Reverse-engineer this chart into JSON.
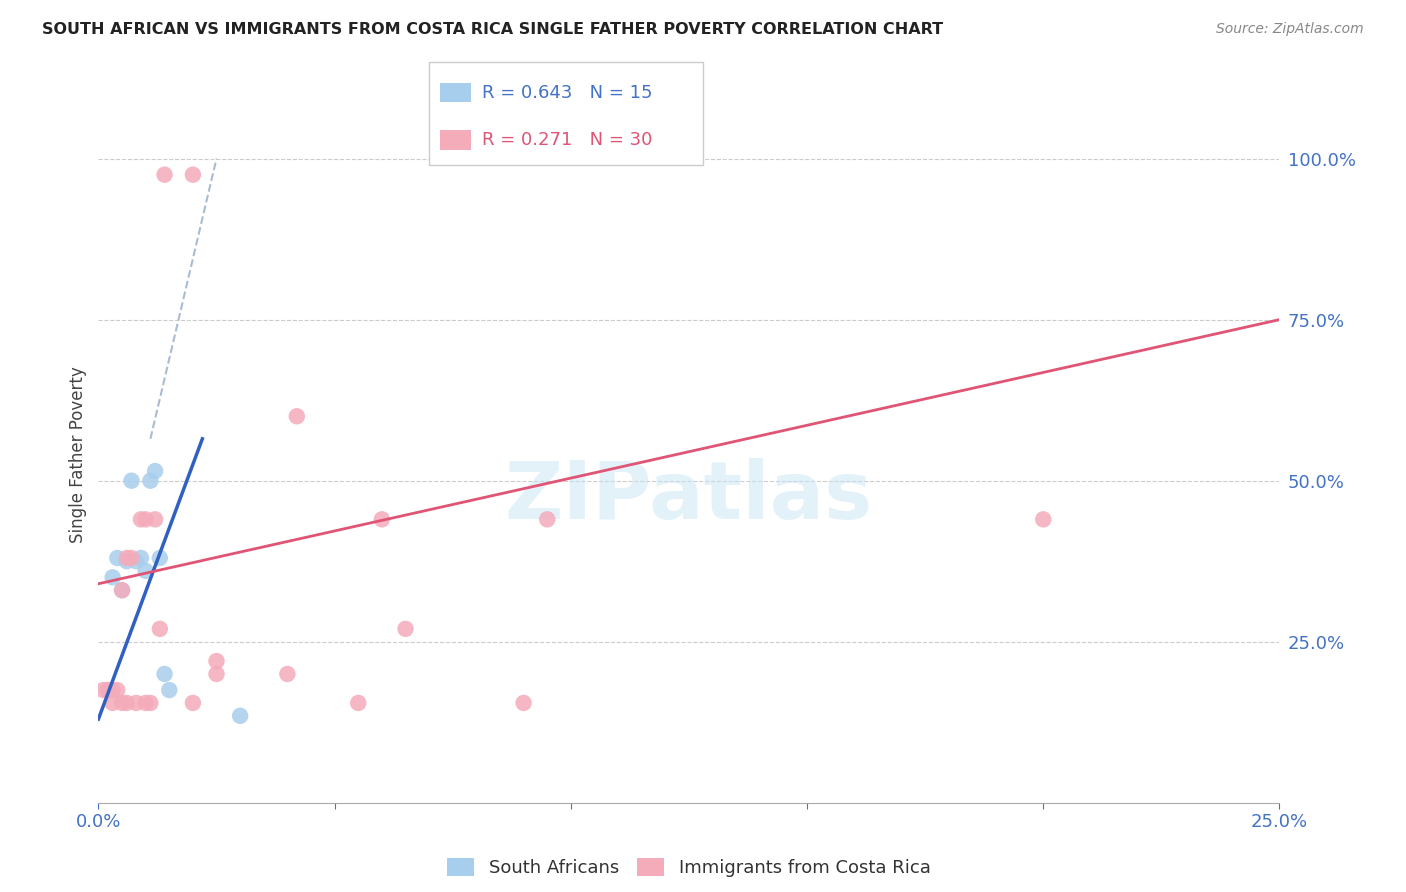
{
  "title": "SOUTH AFRICAN VS IMMIGRANTS FROM COSTA RICA SINGLE FATHER POVERTY CORRELATION CHART",
  "source": "Source: ZipAtlas.com",
  "ylabel": "Single Father Poverty",
  "right_yticks": [
    "100.0%",
    "75.0%",
    "50.0%",
    "25.0%"
  ],
  "right_ytick_vals": [
    1.0,
    0.75,
    0.5,
    0.25
  ],
  "xlim": [
    0.0,
    0.25
  ],
  "ylim": [
    0.0,
    1.08
  ],
  "blue_color": "#A8CEED",
  "pink_color": "#F4ABBA",
  "blue_line_color": "#3060C0",
  "pink_line_color": "#E05575",
  "dash_line_color": "#AABBD4",
  "legend_blue_r": "R = 0.643",
  "legend_blue_n": "N = 15",
  "legend_pink_r": "R = 0.271",
  "legend_pink_n": "N = 30",
  "watermark": "ZIPatlas",
  "blue_scatter_x": [
    0.002,
    0.003,
    0.004,
    0.005,
    0.006,
    0.007,
    0.008,
    0.009,
    0.01,
    0.011,
    0.012,
    0.013,
    0.014,
    0.015,
    0.03
  ],
  "blue_scatter_y": [
    0.175,
    0.35,
    0.38,
    0.33,
    0.375,
    0.5,
    0.375,
    0.38,
    0.36,
    0.5,
    0.515,
    0.38,
    0.2,
    0.175,
    0.135
  ],
  "pink_scatter_x": [
    0.001,
    0.002,
    0.003,
    0.003,
    0.004,
    0.005,
    0.005,
    0.006,
    0.006,
    0.007,
    0.008,
    0.009,
    0.01,
    0.01,
    0.011,
    0.012,
    0.013,
    0.014,
    0.02,
    0.02,
    0.025,
    0.025,
    0.04,
    0.042,
    0.055,
    0.06,
    0.065,
    0.09,
    0.095,
    0.2
  ],
  "pink_scatter_y": [
    0.175,
    0.175,
    0.155,
    0.175,
    0.175,
    0.155,
    0.33,
    0.155,
    0.38,
    0.38,
    0.155,
    0.44,
    0.44,
    0.155,
    0.155,
    0.44,
    0.27,
    0.975,
    0.975,
    0.155,
    0.2,
    0.22,
    0.2,
    0.6,
    0.155,
    0.44,
    0.27,
    0.155,
    0.44,
    0.44
  ],
  "blue_line_x": [
    0.0,
    0.022
  ],
  "blue_line_y": [
    0.13,
    0.565
  ],
  "pink_line_x": [
    0.0,
    0.25
  ],
  "pink_line_y": [
    0.34,
    0.75
  ],
  "dash_line_x": [
    0.011,
    0.025
  ],
  "dash_line_y": [
    0.565,
    1.0
  ]
}
